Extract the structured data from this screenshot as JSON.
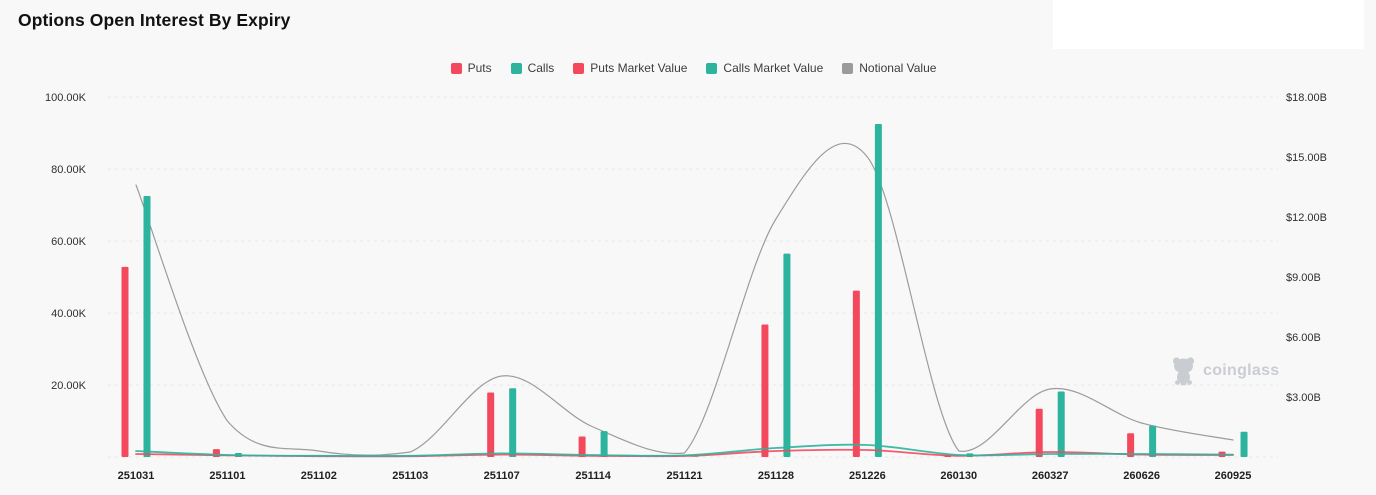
{
  "page": {
    "title": "Options Open Interest By Expiry",
    "background": "#f8f8f8"
  },
  "watermark": {
    "text": "coinglass",
    "color": "#c9cdd1"
  },
  "chart_data": {
    "type": "bar",
    "subtype": "bar+line combo, dual axis",
    "title": "Options Open Interest By Expiry",
    "categories": [
      "251031",
      "251101",
      "251102",
      "251103",
      "251107",
      "251114",
      "251121",
      "251128",
      "251226",
      "260130",
      "260327",
      "260626",
      "260925"
    ],
    "series": [
      {
        "name": "Puts",
        "type": "bar",
        "axis": "left",
        "color": "#F4495D",
        "values": [
          52.8,
          2.2,
          0.1,
          0.1,
          17.9,
          5.7,
          0.1,
          36.8,
          46.2,
          0.5,
          13.4,
          6.6,
          1.5
        ]
      },
      {
        "name": "Calls",
        "type": "bar",
        "axis": "left",
        "color": "#2CB49E",
        "values": [
          72.5,
          1.1,
          0.1,
          0.1,
          19.1,
          7.2,
          0.1,
          56.5,
          92.5,
          1.0,
          18.2,
          8.7,
          7.0
        ]
      },
      {
        "name": "Puts Market Value",
        "type": "line",
        "axis": "right",
        "color": "#F4495D",
        "values": [
          0.15,
          0.08,
          0.04,
          0.04,
          0.12,
          0.06,
          0.05,
          0.3,
          0.35,
          0.06,
          0.25,
          0.12,
          0.1
        ]
      },
      {
        "name": "Calls Market Value",
        "type": "line",
        "axis": "right",
        "color": "#2CB49E",
        "values": [
          0.3,
          0.1,
          0.06,
          0.06,
          0.18,
          0.1,
          0.08,
          0.45,
          0.6,
          0.1,
          0.15,
          0.15,
          0.12
        ]
      },
      {
        "name": "Notional Value",
        "type": "line",
        "axis": "right",
        "color": "#8C8C8C",
        "values": [
          13.6,
          1.8,
          0.3,
          0.25,
          4.05,
          1.5,
          0.2,
          11.9,
          15.0,
          0.3,
          3.4,
          1.7,
          0.85
        ]
      }
    ],
    "left_axis": {
      "range": [
        0,
        100
      ],
      "ticks": [
        {
          "label": "100.00K",
          "value": 100
        },
        {
          "label": "80.00K",
          "value": 80
        },
        {
          "label": "60.00K",
          "value": 60
        },
        {
          "label": "40.00K",
          "value": 40
        },
        {
          "label": "20.00K",
          "value": 20
        }
      ]
    },
    "right_axis": {
      "range": [
        0,
        18
      ],
      "ticks": [
        {
          "label": "$18.00B",
          "value": 18
        },
        {
          "label": "$15.00B",
          "value": 15
        },
        {
          "label": "$12.00B",
          "value": 12
        },
        {
          "label": "$9.00B",
          "value": 9
        },
        {
          "label": "$6.00B",
          "value": 6
        },
        {
          "label": "$3.00B",
          "value": 3
        }
      ]
    },
    "legend": [
      {
        "label": "Puts",
        "color": "#F4495D"
      },
      {
        "label": "Calls",
        "color": "#2CB49E"
      },
      {
        "label": "Puts Market Value",
        "color": "#F4495D"
      },
      {
        "label": "Calls Market Value",
        "color": "#2CB49E"
      },
      {
        "label": "Notional Value",
        "color": "#9B9B9B"
      }
    ],
    "legend_position": "top-center",
    "grid": true,
    "grid_style": "dashed horizontal"
  }
}
